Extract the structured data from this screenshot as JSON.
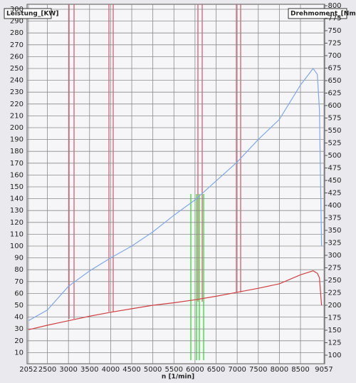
{
  "chart_data": {
    "type": "line",
    "ylabel": "Leistung_[KW]",
    "y2label": "Drehmoment_[Nm]",
    "xlabel": "n  [1/min]",
    "x": [
      2052,
      2500,
      3000,
      3500,
      4000,
      4500,
      5000,
      5500,
      6000,
      6500,
      7000,
      7500,
      8000,
      8500,
      8800,
      8900,
      8950,
      9000
    ],
    "series": [
      {
        "name": "Leistung",
        "color": "#7fa8e8",
        "values": [
          37,
          46,
          66,
          79,
          90,
          100,
          112,
          126,
          139,
          155,
          171,
          190,
          207,
          236,
          250,
          245,
          215,
          100
        ]
      },
      {
        "name": "Drehmoment",
        "color": "#d04040",
        "axis": "y2",
        "values": [
          151,
          160,
          169,
          178,
          186,
          193,
          200,
          205,
          211,
          218,
          226,
          234,
          243,
          261,
          269,
          264,
          255,
          200
        ]
      }
    ],
    "xlim": [
      2052,
      9057
    ],
    "xticks": [
      2052,
      2500,
      3000,
      3500,
      4000,
      4500,
      5000,
      5500,
      6000,
      6500,
      7000,
      7500,
      8000,
      8500,
      9057
    ],
    "ylim": [
      0,
      300
    ],
    "yticks": [
      10,
      20,
      30,
      40,
      50,
      60,
      70,
      80,
      90,
      100,
      110,
      120,
      130,
      140,
      150,
      160,
      170,
      180,
      190,
      200,
      210,
      220,
      230,
      240,
      250,
      260,
      270,
      280,
      290,
      300
    ],
    "y2lim": [
      100,
      800
    ],
    "y2ticks": [
      100,
      125,
      150,
      175,
      200,
      225,
      250,
      275,
      300,
      325,
      350,
      375,
      400,
      425,
      450,
      475,
      500,
      525,
      550,
      575,
      600,
      625,
      650,
      675,
      700,
      725,
      750,
      775,
      800
    ],
    "grid": true
  }
}
